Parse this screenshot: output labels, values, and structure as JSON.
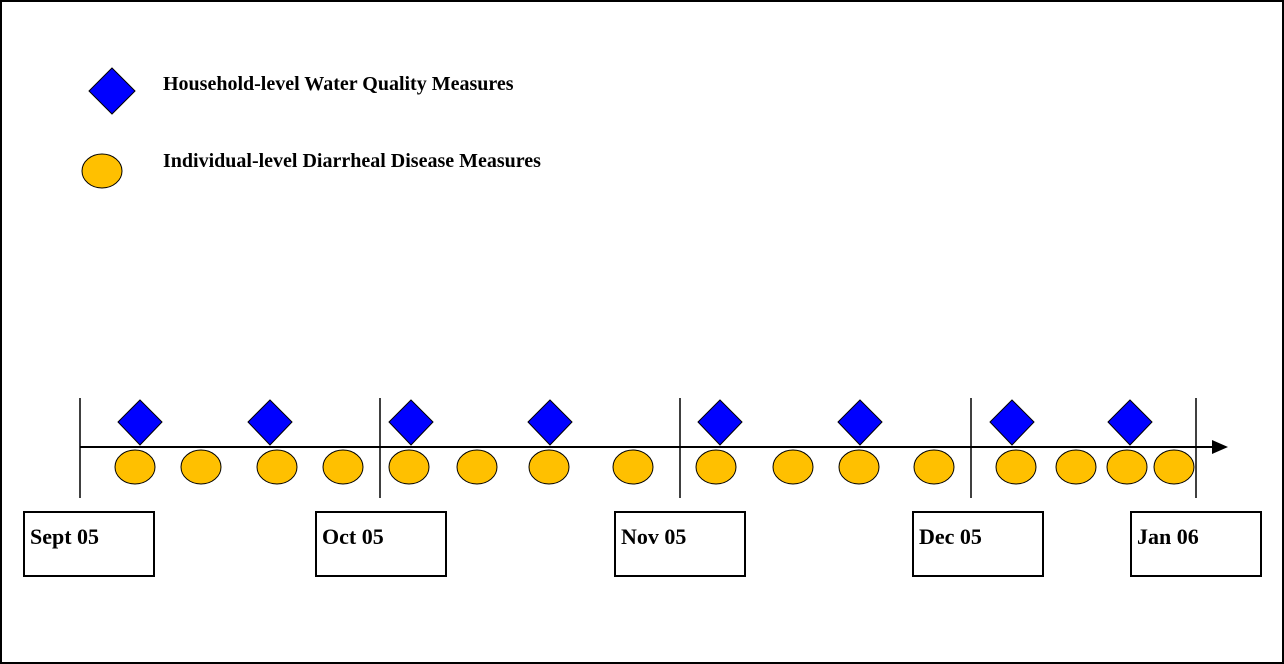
{
  "legend": [
    {
      "label": "Household-level Water Quality Measures"
    },
    {
      "label": "Individual-level Diarrheal Disease Measures"
    }
  ],
  "timeline": {
    "months": [
      "Sept 05",
      "Oct 05",
      "Nov 05",
      "Dec 05",
      "Jan 06"
    ]
  }
}
